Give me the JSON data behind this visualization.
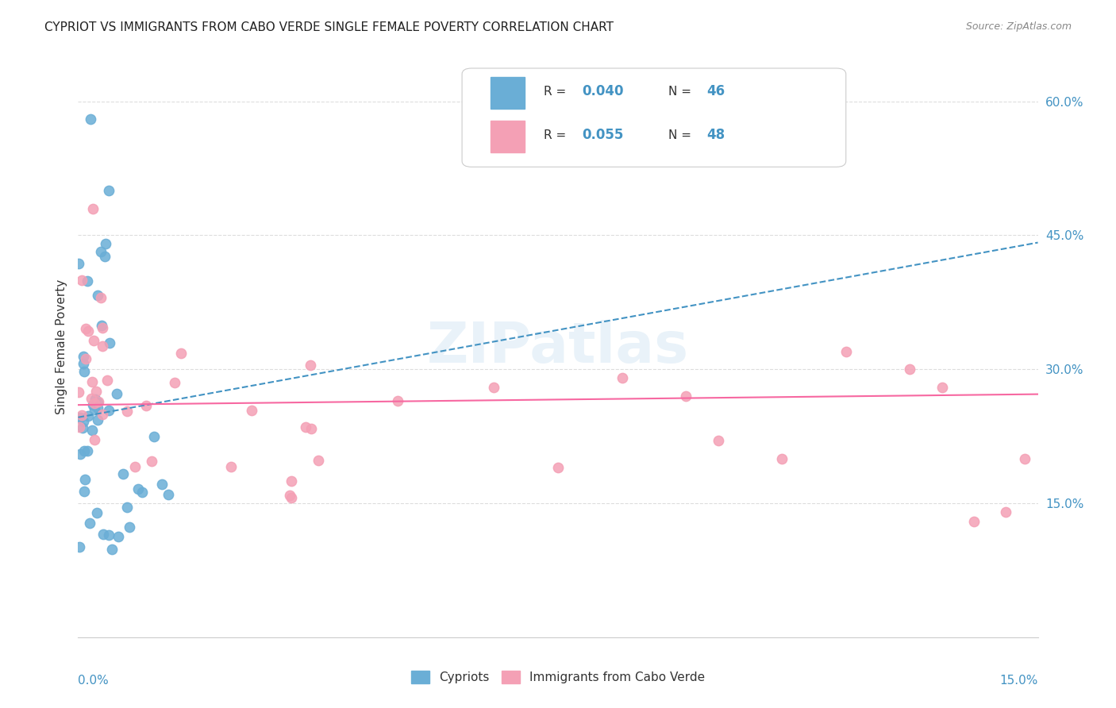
{
  "title": "CYPRIOT VS IMMIGRANTS FROM CABO VERDE SINGLE FEMALE POVERTY CORRELATION CHART",
  "source": "Source: ZipAtlas.com",
  "ylabel": "Single Female Poverty",
  "ylabel_right_ticks": [
    0.15,
    0.3,
    0.45,
    0.6
  ],
  "ylabel_right_labels": [
    "15.0%",
    "30.0%",
    "45.0%",
    "60.0%"
  ],
  "xmin": 0.0,
  "xmax": 0.15,
  "ymin": 0.0,
  "ymax": 0.65,
  "footer_label1": "Cypriots",
  "footer_label2": "Immigrants from Cabo Verde",
  "color_blue": "#6aaed6",
  "color_pink": "#f4a0b5",
  "color_blue_dark": "#4393c3",
  "color_pink_dark": "#f768a1",
  "R_blue": 0.04,
  "N_blue": 46,
  "R_pink": 0.055,
  "N_pink": 48
}
